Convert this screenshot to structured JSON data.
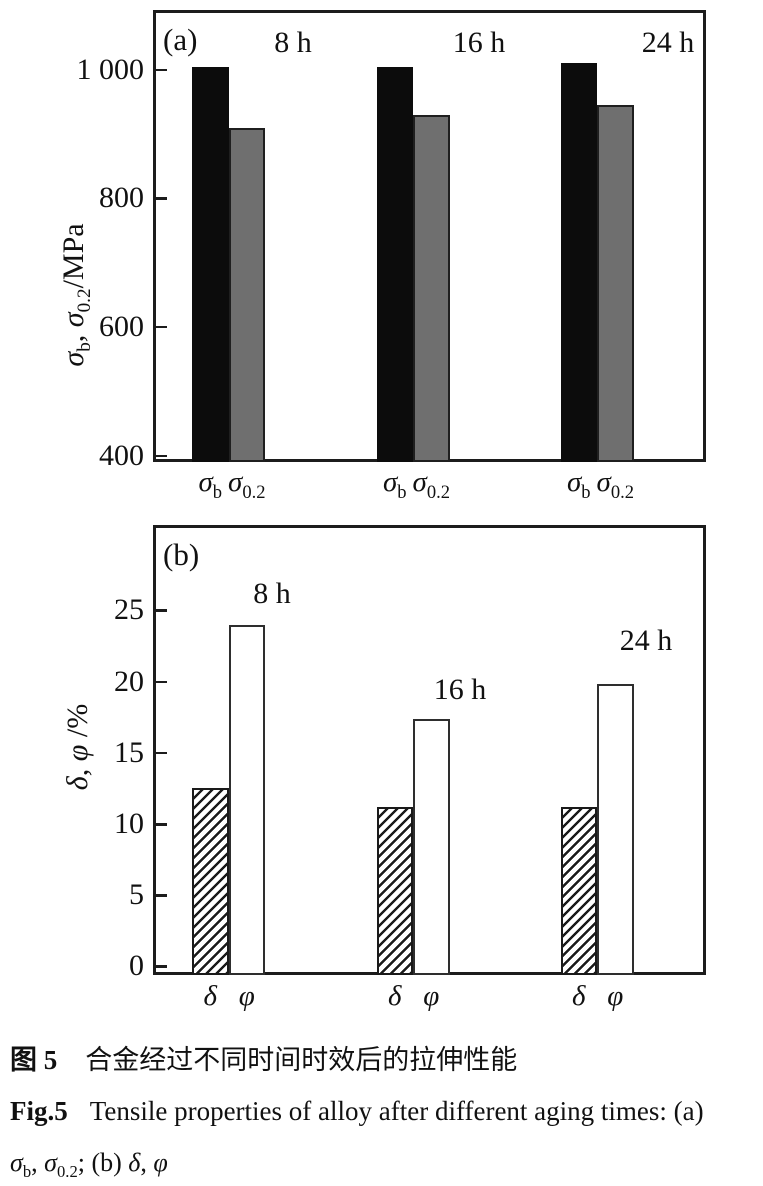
{
  "chart_data": [
    {
      "id": "a",
      "type": "bar",
      "panel": "(a)",
      "categories": [
        "8 h",
        "16 h",
        "24 h"
      ],
      "series": [
        {
          "name": "sigma-b",
          "label_main": "σ",
          "label_sub": "b",
          "style": "solid-black",
          "values": [
            1005,
            1005,
            1010
          ]
        },
        {
          "name": "sigma-0-2",
          "label_main": "σ",
          "label_sub": "0.2",
          "style": "solid-gray",
          "values": [
            910,
            930,
            945
          ]
        }
      ],
      "ylabel_parts": [
        {
          "text": "σ",
          "italic": true
        },
        {
          "text": "b",
          "sub": true
        },
        {
          "text": ", "
        },
        {
          "text": "σ",
          "italic": true
        },
        {
          "text": "0.2",
          "sub": true
        },
        {
          "text": "/MPa"
        }
      ],
      "yticks": [
        400,
        600,
        800,
        1000
      ],
      "ytick_labels": [
        "400",
        "600",
        "800",
        "1 000"
      ],
      "ylim": [
        390,
        1093
      ],
      "unit": "MPa",
      "grid": false,
      "legend_position": "labels-under-bars"
    },
    {
      "id": "b",
      "type": "bar",
      "panel": "(b)",
      "categories": [
        "8 h",
        "16 h",
        "24 h"
      ],
      "series": [
        {
          "name": "delta",
          "label_main": "δ",
          "label_sub": "",
          "style": "hatched",
          "values": [
            12.5,
            11.2,
            11.2
          ]
        },
        {
          "name": "phi",
          "label_main": "φ",
          "label_sub": "",
          "style": "white",
          "values": [
            24.0,
            17.4,
            19.8
          ]
        }
      ],
      "ylabel_parts": [
        {
          "text": "δ",
          "italic": true
        },
        {
          "text": ", "
        },
        {
          "text": "φ",
          "italic": true
        },
        {
          "text": " /%"
        }
      ],
      "yticks": [
        0,
        5,
        10,
        15,
        20,
        25
      ],
      "ytick_labels": [
        "0",
        "5",
        "10",
        "15",
        "20",
        "25"
      ],
      "ylim": [
        -0.6,
        31
      ],
      "unit": "%",
      "grid": false,
      "legend_position": "labels-under-bars"
    }
  ],
  "caption": {
    "zh_label": "图 5",
    "zh_text": "合金经过不同时间时效后的拉伸性能",
    "en_label": "Fig.5",
    "en_text": "Tensile properties of alloy after different aging times: (a)",
    "line3_parts": [
      {
        "text": "σ",
        "italic": true
      },
      {
        "text": "b",
        "sub": true
      },
      {
        "text": ", "
      },
      {
        "text": "σ",
        "italic": true
      },
      {
        "text": "0.2",
        "sub": true
      },
      {
        "text": "; (b) "
      },
      {
        "text": "δ",
        "italic": true
      },
      {
        "text": ", "
      },
      {
        "text": "φ",
        "italic": true
      }
    ]
  },
  "colors": {
    "bar_black": "#0c0c0c",
    "bar_gray": "#6f6f6f",
    "axis": "#1c1c1c",
    "text": "#111111",
    "background": "#ffffff"
  }
}
